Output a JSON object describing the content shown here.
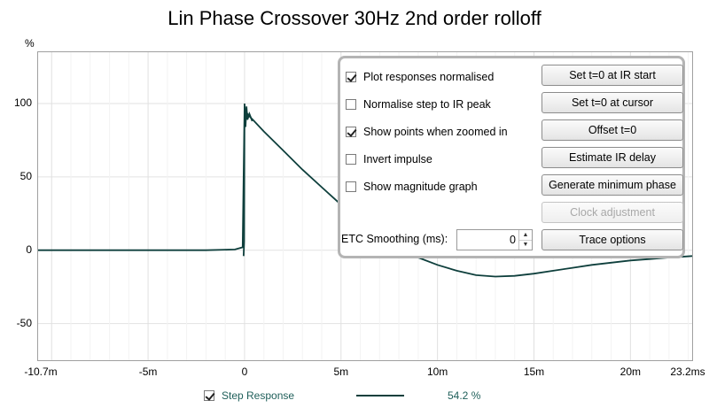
{
  "title": "Lin Phase Crossover 30Hz 2nd order rolloff",
  "y_unit": "%",
  "y_ticks": [
    "100",
    "50",
    "0",
    "-50"
  ],
  "x_ticks": [
    "-10.7m",
    "-5m",
    "0",
    "5m",
    "10m",
    "15m",
    "20m",
    "23.2ms"
  ],
  "panel": {
    "checkboxes": [
      {
        "label": "Plot responses normalised",
        "checked": true
      },
      {
        "label": "Normalise step to IR peak",
        "checked": false
      },
      {
        "label": "Show points when zoomed in",
        "checked": true
      },
      {
        "label": "Invert impulse",
        "checked": false
      },
      {
        "label": "Show magnitude graph",
        "checked": false
      }
    ],
    "buttons": [
      {
        "label": "Set t=0 at IR start",
        "enabled": true
      },
      {
        "label": "Set t=0 at cursor",
        "enabled": true
      },
      {
        "label": "Offset t=0",
        "enabled": true
      },
      {
        "label": "Estimate IR delay",
        "enabled": true
      },
      {
        "label": "Generate minimum phase",
        "enabled": true
      },
      {
        "label": "Clock adjustment",
        "enabled": false
      },
      {
        "label": "Trace options",
        "enabled": true
      }
    ],
    "etc_label": "ETC Smoothing (ms):",
    "etc_value": "0"
  },
  "legend": {
    "label": "Step Response",
    "checked": true,
    "value": "54.2 %",
    "color": "#0e3f3c"
  },
  "chart_data": {
    "type": "line",
    "title": "Lin Phase Crossover 30Hz 2nd order rolloff",
    "xlabel": "",
    "ylabel": "%",
    "xlim_ms": [
      -10.7,
      23.2
    ],
    "ylim": [
      -75,
      135
    ],
    "grid": true,
    "series": [
      {
        "name": "Step Response",
        "x_ms": [
          -10.7,
          -5,
          -2,
          -0.5,
          -0.1,
          0,
          0.2,
          0.5,
          1,
          2,
          3,
          4,
          5,
          6,
          7,
          8,
          9,
          10,
          11,
          12,
          13,
          14,
          15,
          16,
          17,
          18,
          19,
          20,
          21,
          22,
          23.2
        ],
        "y": [
          0,
          0,
          0,
          0.5,
          2,
          96,
          92,
          88,
          81,
          68,
          55,
          43,
          31,
          20,
          10,
          2,
          -5,
          -10,
          -14,
          -17,
          -18,
          -17.5,
          -16,
          -14,
          -12,
          -10,
          -8.5,
          -7,
          -6,
          -5,
          -4
        ]
      }
    ]
  }
}
